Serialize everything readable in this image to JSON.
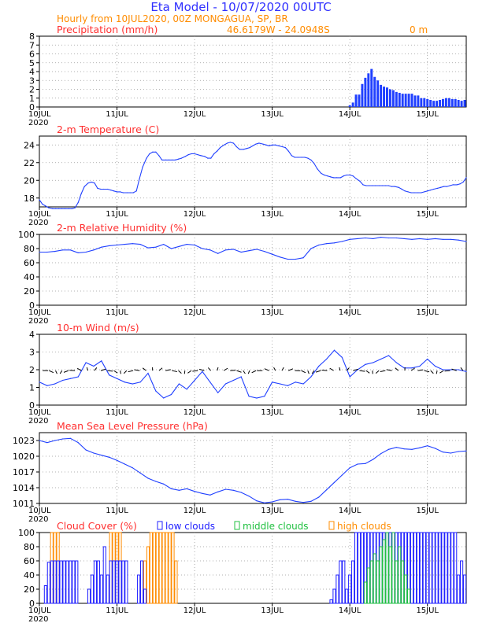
{
  "header": {
    "title": "Eta Model - 10/07/2020 00UTC",
    "subtitle": "Hourly from 10JUL2020, 00Z  MONGAGUA, SP, BR",
    "coords": "46.6179W - 24.0948S",
    "elevation": "0   m"
  },
  "colors": {
    "title": "#3030ff",
    "subtitle": "#ff8c00",
    "panel_title": "#ff3030",
    "line": "#2040ff",
    "low_clouds": "#2020ff",
    "middle_clouds": "#20c040",
    "high_clouds": "#ff8c00"
  },
  "chart_data": [
    {
      "type": "bar",
      "title": "Precipitation (mm/h)",
      "ylim": [
        0,
        8
      ],
      "yticks": [
        0,
        1,
        2,
        3,
        4,
        5,
        6,
        7,
        8
      ],
      "xlim": [
        0,
        5.5
      ],
      "xtick_labels": [
        "10JUL",
        "11JUL",
        "12JUL",
        "13JUL",
        "14JUL",
        "15JUL"
      ],
      "year_label": "2020",
      "x": [
        4.0,
        4.04,
        4.08,
        4.12,
        4.16,
        4.2,
        4.24,
        4.28,
        4.32,
        4.36,
        4.4,
        4.44,
        4.48,
        4.52,
        4.56,
        4.6,
        4.64,
        4.68,
        4.72,
        4.76,
        4.8,
        4.84,
        4.88,
        4.92,
        4.96,
        5.0,
        5.04,
        5.08,
        5.12,
        5.16,
        5.2,
        5.24,
        5.28,
        5.32,
        5.36,
        5.4,
        5.44,
        5.48
      ],
      "values": [
        0.2,
        0.5,
        1.4,
        1.4,
        2.6,
        3.3,
        3.8,
        4.3,
        3.4,
        3.0,
        2.5,
        2.3,
        2.2,
        2.0,
        1.9,
        1.7,
        1.6,
        1.5,
        1.5,
        1.5,
        1.5,
        1.3,
        1.3,
        1.0,
        1.0,
        0.9,
        0.8,
        0.7,
        0.7,
        0.8,
        0.9,
        1.0,
        1.0,
        0.9,
        0.9,
        0.8,
        0.7,
        0.8
      ]
    },
    {
      "type": "line",
      "title": "2-m Temperature (C)",
      "ylim": [
        17,
        25
      ],
      "yticks": [
        18,
        20,
        22,
        24
      ],
      "xlim": [
        0,
        5.5
      ],
      "xtick_labels": [
        "10JUL",
        "11JUL",
        "12JUL",
        "13JUL",
        "14JUL",
        "15JUL"
      ],
      "year_label": "2020",
      "x": [
        0,
        0.04,
        0.08,
        0.12,
        0.17,
        0.21,
        0.25,
        0.29,
        0.33,
        0.38,
        0.42,
        0.46,
        0.5,
        0.54,
        0.58,
        0.63,
        0.67,
        0.71,
        0.75,
        0.79,
        0.83,
        0.88,
        0.92,
        0.96,
        1.0,
        1.04,
        1.08,
        1.13,
        1.17,
        1.21,
        1.25,
        1.29,
        1.33,
        1.38,
        1.42,
        1.46,
        1.5,
        1.54,
        1.58,
        1.63,
        1.67,
        1.71,
        1.75,
        1.79,
        1.83,
        1.88,
        1.92,
        1.96,
        2.0,
        2.04,
        2.08,
        2.13,
        2.17,
        2.21,
        2.25,
        2.29,
        2.33,
        2.38,
        2.42,
        2.46,
        2.5,
        2.54,
        2.58,
        2.63,
        2.67,
        2.71,
        2.75,
        2.79,
        2.83,
        2.88,
        2.92,
        2.96,
        3.0,
        3.04,
        3.08,
        3.13,
        3.17,
        3.21,
        3.25,
        3.29,
        3.33,
        3.38,
        3.42,
        3.46,
        3.5,
        3.54,
        3.58,
        3.63,
        3.67,
        3.71,
        3.75,
        3.79,
        3.83,
        3.88,
        3.92,
        3.96,
        4.0,
        4.04,
        4.08,
        4.13,
        4.17,
        4.21,
        4.25,
        4.29,
        4.33,
        4.38,
        4.42,
        4.46,
        4.5,
        4.54,
        4.58,
        4.63,
        4.67,
        4.71,
        4.75,
        4.79,
        4.83,
        4.88,
        4.92,
        4.96,
        5.0,
        5.04,
        5.08,
        5.13,
        5.17,
        5.21,
        5.25,
        5.29,
        5.33,
        5.38,
        5.42,
        5.46,
        5.5
      ],
      "values": [
        17.8,
        17.3,
        17.1,
        16.9,
        16.8,
        16.8,
        16.8,
        16.8,
        16.8,
        16.8,
        16.8,
        16.9,
        17.5,
        18.5,
        19.3,
        19.7,
        19.8,
        19.7,
        19.1,
        19.0,
        19.0,
        19.0,
        18.9,
        18.8,
        18.7,
        18.7,
        18.6,
        18.6,
        18.6,
        18.6,
        18.8,
        20.2,
        21.5,
        22.5,
        23.0,
        23.2,
        23.2,
        22.8,
        22.3,
        22.3,
        22.3,
        22.3,
        22.3,
        22.4,
        22.5,
        22.7,
        22.9,
        23.0,
        23.0,
        22.9,
        22.8,
        22.7,
        22.5,
        22.5,
        23.0,
        23.3,
        23.7,
        24.0,
        24.2,
        24.3,
        24.2,
        23.8,
        23.5,
        23.5,
        23.6,
        23.7,
        23.9,
        24.1,
        24.2,
        24.1,
        24.0,
        23.9,
        24.0,
        24.0,
        23.9,
        23.8,
        23.7,
        23.3,
        22.8,
        22.6,
        22.6,
        22.6,
        22.6,
        22.5,
        22.3,
        21.9,
        21.3,
        20.8,
        20.6,
        20.5,
        20.4,
        20.3,
        20.3,
        20.3,
        20.5,
        20.6,
        20.6,
        20.5,
        20.2,
        19.9,
        19.5,
        19.4,
        19.4,
        19.4,
        19.4,
        19.4,
        19.4,
        19.4,
        19.4,
        19.3,
        19.3,
        19.2,
        19.0,
        18.8,
        18.7,
        18.6,
        18.6,
        18.6,
        18.6,
        18.7,
        18.8,
        18.9,
        19.0,
        19.1,
        19.2,
        19.3,
        19.3,
        19.4,
        19.5,
        19.5,
        19.6,
        19.8,
        20.3
      ]
    },
    {
      "type": "line",
      "title": "2-m Relative Humidity (%)",
      "ylim": [
        0,
        100
      ],
      "yticks": [
        0,
        20,
        40,
        60,
        80,
        100
      ],
      "xlim": [
        0,
        5.5
      ],
      "xtick_labels": [
        "10JUL",
        "11JUL",
        "12JUL",
        "13JUL",
        "14JUL",
        "15JUL"
      ],
      "year_label": "2020",
      "x": [
        0,
        0.1,
        0.2,
        0.3,
        0.4,
        0.5,
        0.6,
        0.7,
        0.8,
        0.9,
        1.0,
        1.1,
        1.2,
        1.3,
        1.4,
        1.5,
        1.6,
        1.7,
        1.8,
        1.9,
        2.0,
        2.1,
        2.2,
        2.3,
        2.4,
        2.5,
        2.6,
        2.7,
        2.8,
        2.9,
        3.0,
        3.1,
        3.2,
        3.3,
        3.4,
        3.5,
        3.6,
        3.7,
        3.8,
        3.9,
        4.0,
        4.1,
        4.2,
        4.3,
        4.4,
        4.5,
        4.6,
        4.7,
        4.8,
        4.9,
        5.0,
        5.1,
        5.2,
        5.3,
        5.4,
        5.5
      ],
      "values": [
        75,
        75,
        76,
        78,
        78,
        74,
        75,
        78,
        82,
        84,
        85,
        86,
        87,
        86,
        81,
        82,
        86,
        80,
        83,
        86,
        85,
        80,
        78,
        73,
        78,
        79,
        75,
        77,
        79,
        76,
        72,
        68,
        65,
        65,
        67,
        80,
        85,
        87,
        88,
        90,
        93,
        94,
        95,
        94,
        96,
        95,
        95,
        94,
        93,
        94,
        93,
        94,
        93,
        93,
        92,
        90
      ]
    },
    {
      "type": "line",
      "title": "10-m Wind (m/s)",
      "ylim": [
        0,
        4
      ],
      "yticks": [
        0,
        1,
        2,
        3,
        4
      ],
      "xlim": [
        0,
        5.5
      ],
      "xtick_labels": [
        "10JUL",
        "11JUL",
        "12JUL",
        "13JUL",
        "14JUL",
        "15JUL"
      ],
      "year_label": "2020",
      "x": [
        0,
        0.1,
        0.2,
        0.3,
        0.4,
        0.5,
        0.6,
        0.7,
        0.8,
        0.9,
        1.0,
        1.1,
        1.2,
        1.3,
        1.4,
        1.5,
        1.6,
        1.7,
        1.8,
        1.9,
        2.0,
        2.1,
        2.2,
        2.3,
        2.4,
        2.5,
        2.6,
        2.7,
        2.8,
        2.9,
        3.0,
        3.1,
        3.2,
        3.3,
        3.4,
        3.5,
        3.6,
        3.7,
        3.8,
        3.9,
        4.0,
        4.1,
        4.2,
        4.3,
        4.4,
        4.5,
        4.6,
        4.7,
        4.8,
        4.9,
        5.0,
        5.1,
        5.2,
        5.3,
        5.4,
        5.5
      ],
      "values": [
        1.3,
        1.1,
        1.2,
        1.4,
        1.5,
        1.6,
        2.4,
        2.2,
        2.5,
        1.7,
        1.5,
        1.3,
        1.2,
        1.3,
        1.8,
        0.8,
        0.4,
        0.6,
        1.2,
        0.9,
        1.4,
        1.9,
        1.3,
        0.7,
        1.2,
        1.4,
        1.6,
        0.5,
        0.4,
        0.5,
        1.3,
        1.2,
        1.1,
        1.3,
        1.2,
        1.6,
        2.2,
        2.6,
        3.1,
        2.7,
        1.6,
        2.0,
        2.3,
        2.4,
        2.6,
        2.8,
        2.4,
        2.1,
        2.1,
        2.2,
        2.6,
        2.2,
        2.0,
        2.0,
        2.0,
        1.9
      ],
      "arrows": "wind barbs at ~2 m/s along the series"
    },
    {
      "type": "line",
      "title": "Mean Sea Level Pressure (hPa)",
      "ylim": [
        1011,
        1024.5
      ],
      "yticks": [
        1011,
        1014,
        1017,
        1020,
        1023
      ],
      "xlim": [
        0,
        5.5
      ],
      "xtick_labels": [
        "10JUL",
        "11JUL",
        "12JUL",
        "13JUL",
        "14JUL",
        "15JUL"
      ],
      "year_label": "2020",
      "x": [
        0,
        0.1,
        0.2,
        0.3,
        0.4,
        0.5,
        0.6,
        0.7,
        0.8,
        0.9,
        1.0,
        1.1,
        1.2,
        1.3,
        1.4,
        1.5,
        1.6,
        1.7,
        1.8,
        1.9,
        2.0,
        2.1,
        2.2,
        2.3,
        2.4,
        2.5,
        2.6,
        2.7,
        2.8,
        2.9,
        3.0,
        3.1,
        3.2,
        3.3,
        3.4,
        3.5,
        3.6,
        3.7,
        3.8,
        3.9,
        4.0,
        4.1,
        4.2,
        4.3,
        4.4,
        4.5,
        4.6,
        4.7,
        4.8,
        4.9,
        5.0,
        5.1,
        5.2,
        5.3,
        5.4,
        5.5
      ],
      "values": [
        1023.0,
        1022.6,
        1023.0,
        1023.3,
        1023.4,
        1022.6,
        1021.2,
        1020.6,
        1020.2,
        1019.8,
        1019.2,
        1018.5,
        1017.8,
        1016.8,
        1015.8,
        1015.2,
        1014.7,
        1013.8,
        1013.5,
        1013.8,
        1013.3,
        1012.9,
        1012.6,
        1013.2,
        1013.7,
        1013.5,
        1013.1,
        1012.4,
        1011.5,
        1011.1,
        1011.3,
        1011.7,
        1011.8,
        1011.4,
        1011.2,
        1011.4,
        1012.2,
        1013.6,
        1015.0,
        1016.4,
        1017.8,
        1018.5,
        1018.6,
        1019.4,
        1020.5,
        1021.3,
        1021.7,
        1021.4,
        1021.3,
        1021.6,
        1022.0,
        1021.5,
        1020.8,
        1020.6,
        1020.9,
        1021.0
      ]
    },
    {
      "type": "bar",
      "title": "Cloud Cover (%)",
      "ylim": [
        0,
        100
      ],
      "yticks": [
        0,
        20,
        40,
        60,
        80,
        100
      ],
      "xlim": [
        0,
        5.5
      ],
      "xtick_labels": [
        "10JUL",
        "11JUL",
        "12JUL",
        "13JUL",
        "14JUL",
        "15JUL"
      ],
      "year_label": "2020",
      "legend": [
        "low clouds",
        "middle clouds",
        "high clouds"
      ],
      "series": [
        {
          "name": "low clouds",
          "x": [
            0.08,
            0.12,
            0.16,
            0.2,
            0.24,
            0.28,
            0.32,
            0.36,
            0.4,
            0.44,
            0.48,
            0.64,
            0.68,
            0.72,
            0.76,
            0.8,
            0.84,
            0.88,
            0.92,
            0.96,
            1.0,
            1.04,
            1.08,
            1.12,
            1.28,
            1.32,
            1.36,
            3.76,
            3.8,
            3.84,
            3.88,
            3.92,
            3.96,
            4.0,
            4.04,
            4.08,
            4.12,
            4.16,
            4.2,
            4.24,
            4.28,
            4.32,
            4.36,
            4.4,
            4.44,
            4.48,
            4.52,
            4.56,
            4.6,
            4.64,
            4.68,
            4.72,
            4.76,
            4.8,
            4.84,
            4.88,
            4.92,
            4.96,
            5.0,
            5.04,
            5.08,
            5.12,
            5.16,
            5.2,
            5.24,
            5.28,
            5.32,
            5.36,
            5.4,
            5.44,
            5.48
          ],
          "values": [
            25,
            58,
            60,
            60,
            60,
            60,
            60,
            60,
            60,
            60,
            60,
            20,
            40,
            60,
            60,
            40,
            80,
            40,
            60,
            60,
            60,
            60,
            60,
            60,
            40,
            60,
            20,
            5,
            20,
            40,
            60,
            60,
            20,
            40,
            60,
            100,
            100,
            100,
            100,
            100,
            100,
            100,
            100,
            100,
            100,
            100,
            100,
            100,
            100,
            100,
            100,
            100,
            100,
            100,
            100,
            100,
            100,
            100,
            100,
            100,
            100,
            100,
            100,
            100,
            100,
            100,
            100,
            100,
            40,
            60,
            40
          ]
        },
        {
          "name": "middle clouds",
          "x": [
            4.2,
            4.24,
            4.28,
            4.32,
            4.36,
            4.4,
            4.44,
            4.48,
            4.52,
            4.56,
            4.6,
            4.64,
            4.68,
            4.72,
            4.76
          ],
          "values": [
            30,
            50,
            60,
            70,
            60,
            80,
            90,
            100,
            80,
            100,
            60,
            80,
            60,
            40,
            20
          ]
        },
        {
          "name": "high clouds",
          "x": [
            0.16,
            0.2,
            0.24,
            0.92,
            0.96,
            1.0,
            1.04,
            1.32,
            1.36,
            1.4,
            1.44,
            1.48,
            1.52,
            1.56,
            1.6,
            1.64,
            1.68,
            1.72,
            1.76
          ],
          "values": [
            100,
            100,
            100,
            100,
            100,
            100,
            100,
            60,
            60,
            80,
            100,
            100,
            100,
            100,
            100,
            100,
            100,
            100,
            60
          ]
        }
      ]
    }
  ]
}
